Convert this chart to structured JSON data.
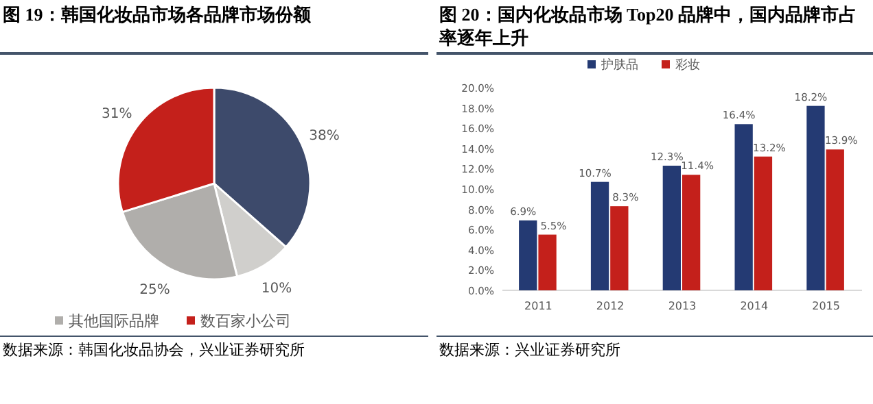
{
  "chart_data": [
    {
      "type": "pie",
      "title": "图 19：韩国化妆品市场各品牌市场份额",
      "categories": [
        null,
        null,
        "其他国际品牌",
        "数百家小公司"
      ],
      "values": [
        38,
        10,
        25,
        31
      ],
      "value_labels": [
        "38%",
        "10%",
        "25%",
        "31%"
      ],
      "colors": [
        "#3d4a6b",
        "#d0cfcc",
        "#b0aeab",
        "#c4201b"
      ],
      "legend": "bottom",
      "annotations": [
        "数据来源：韩国化妆品协会，兴业证券研究所"
      ]
    },
    {
      "type": "bar",
      "title": "图 20：国内化妆品市场 Top20 品牌中，国内品牌市占率逐年上升",
      "categories": [
        "2011",
        "2012",
        "2013",
        "2014",
        "2015"
      ],
      "series": [
        {
          "name": "护肤品",
          "color": "#243a73",
          "values": [
            6.9,
            10.7,
            12.3,
            16.4,
            18.2
          ],
          "value_labels": [
            "6.9%",
            "10.7%",
            "12.3%",
            "16.4%",
            "18.2%"
          ]
        },
        {
          "name": "彩妆",
          "color": "#c4201b",
          "values": [
            5.5,
            8.3,
            11.4,
            13.2,
            13.9
          ],
          "value_labels": [
            "5.5%",
            "8.3%",
            "11.4%",
            "13.2%",
            "13.9%"
          ]
        }
      ],
      "ylim": [
        0,
        20
      ],
      "yticks": [
        {
          "value": 0,
          "label": "0.0%"
        },
        {
          "value": 2,
          "label": "2.0%"
        },
        {
          "value": 4,
          "label": "4.0%"
        },
        {
          "value": 6,
          "label": "6.0%"
        },
        {
          "value": 8,
          "label": "8.0%"
        },
        {
          "value": 10,
          "label": "10.0%"
        },
        {
          "value": 12,
          "label": "12.0%"
        },
        {
          "value": 14,
          "label": "14.0%"
        },
        {
          "value": 16,
          "label": "16.0%"
        },
        {
          "value": 18,
          "label": "18.0%"
        },
        {
          "value": 20,
          "label": "20.0%"
        }
      ],
      "legend": "top",
      "annotations": [
        "数据来源：兴业证券研究所"
      ]
    }
  ]
}
